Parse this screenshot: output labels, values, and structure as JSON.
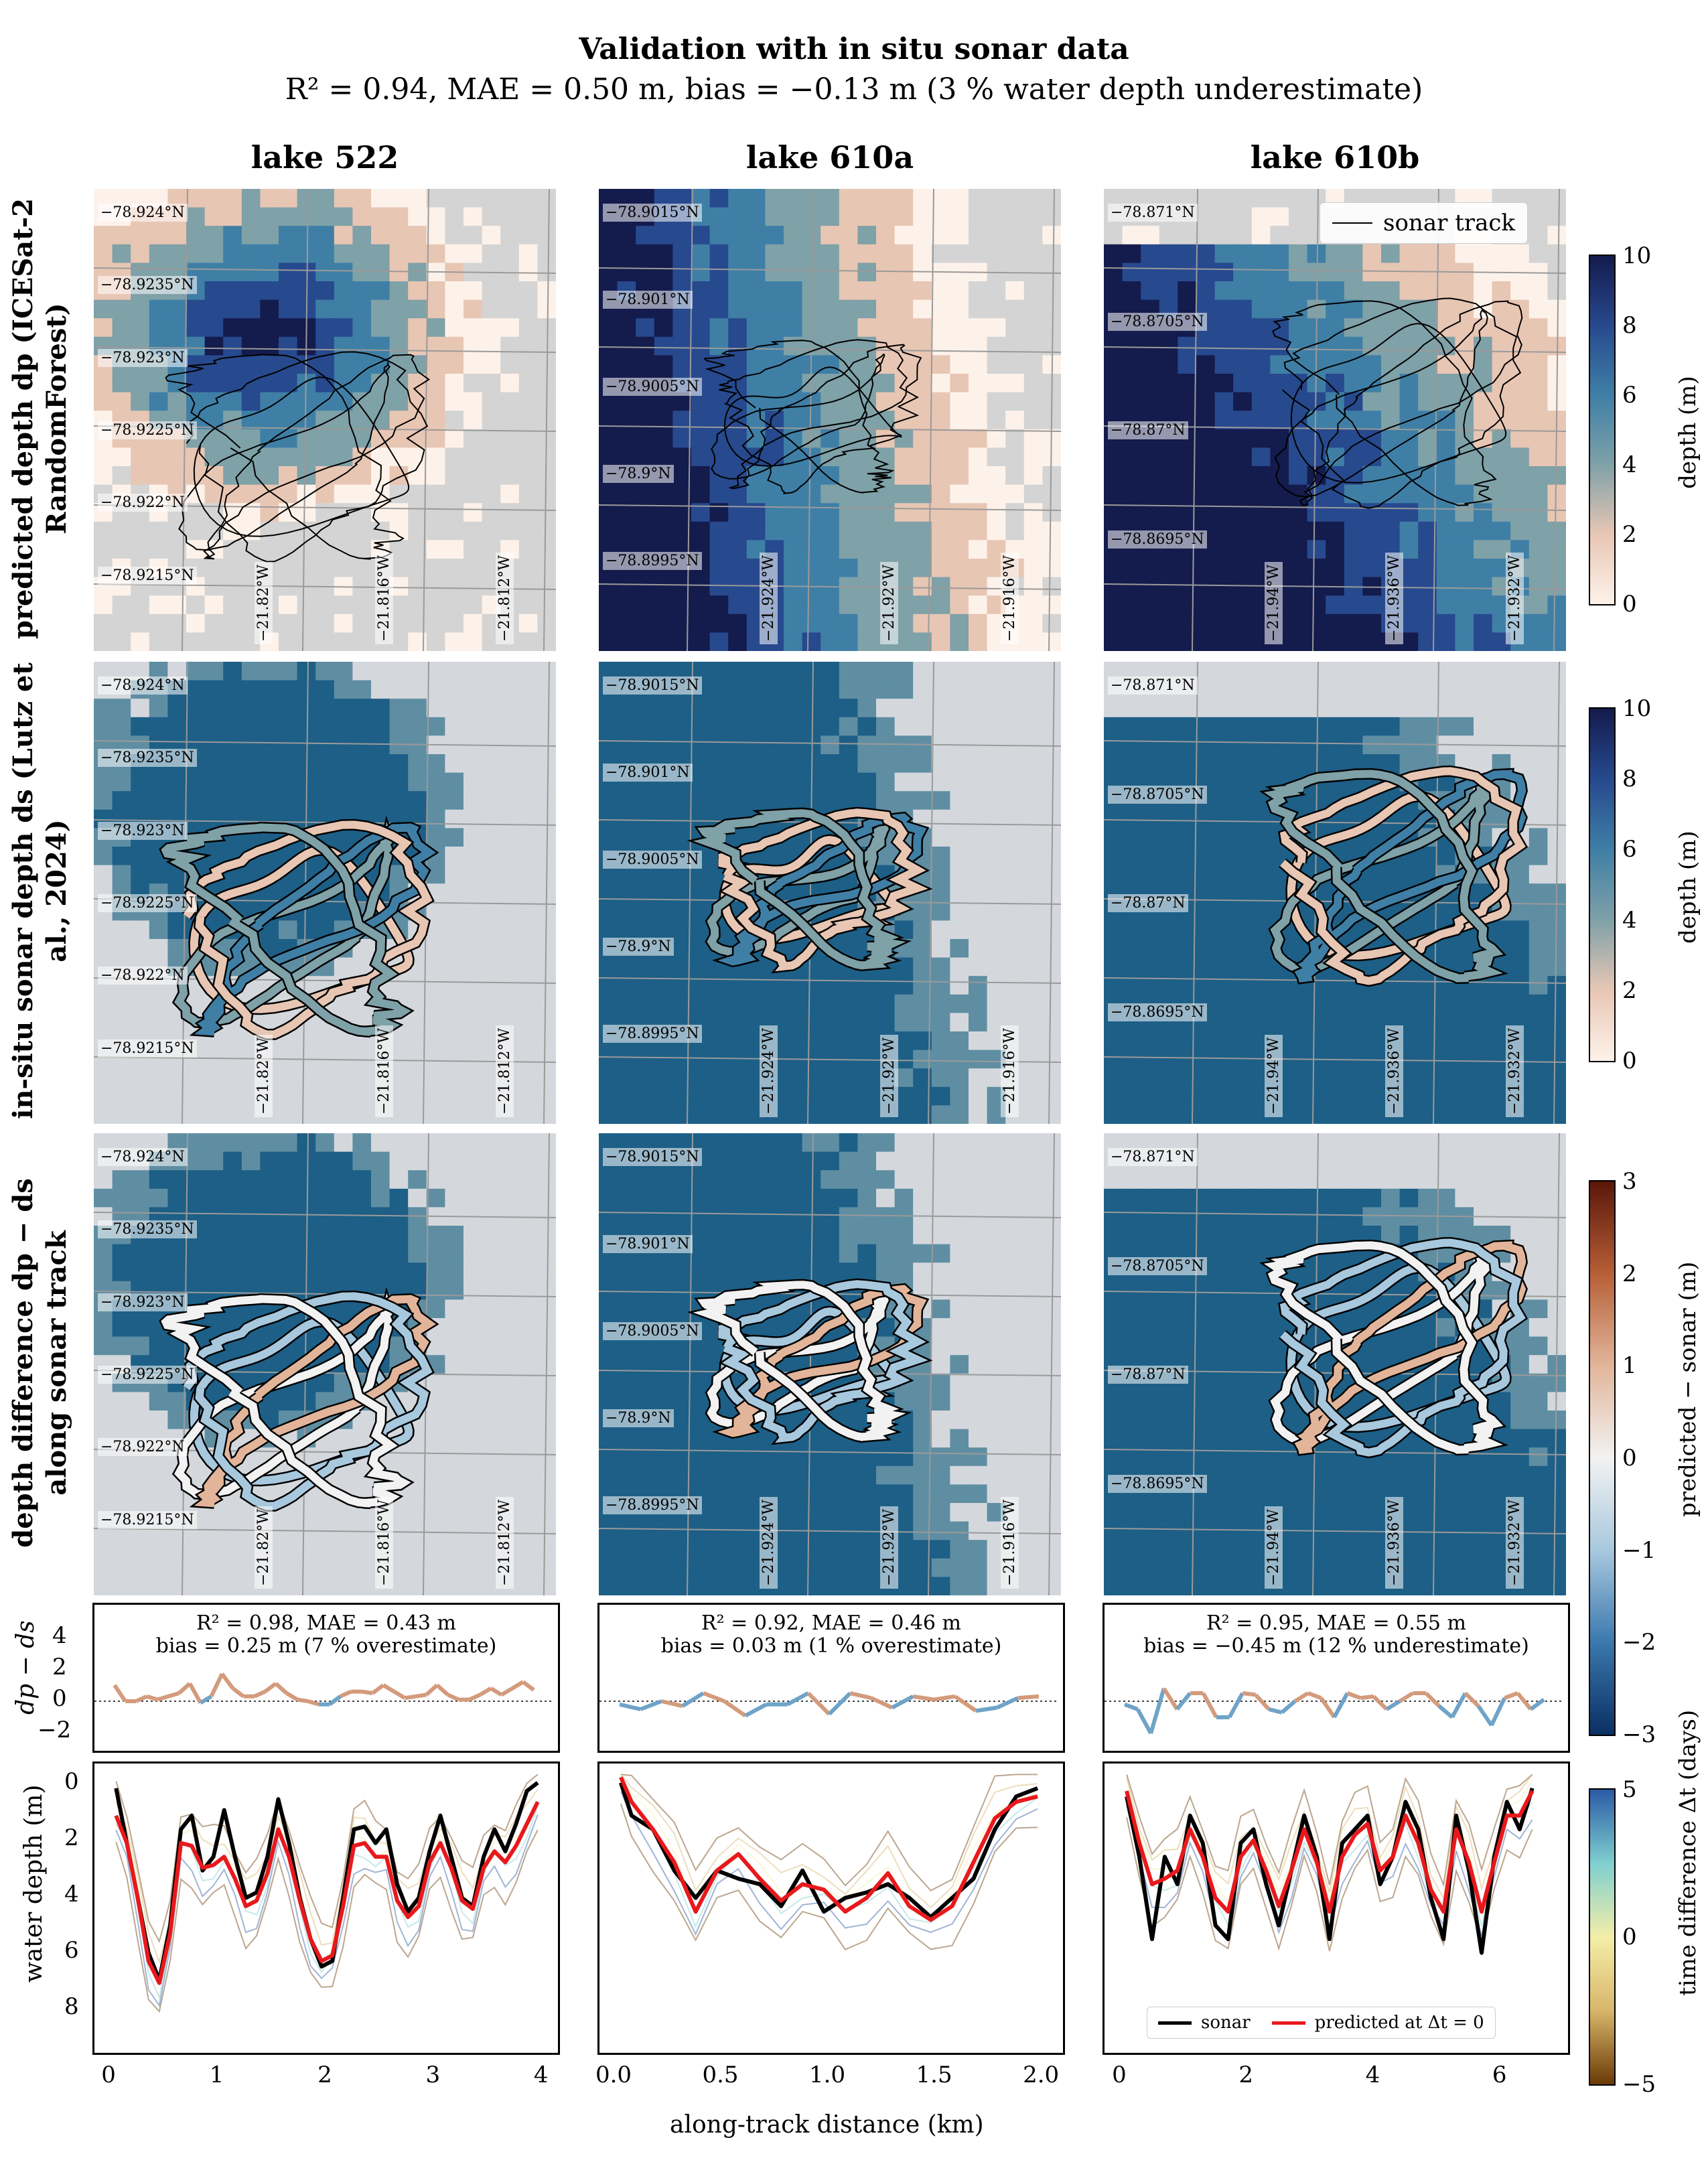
{
  "title": "Validation with in situ sonar data",
  "subtitle": "R² = 0.94, MAE = 0.50 m, bias = −0.13 m (3 % water depth underestimate)",
  "columns": [
    "lake 522",
    "lake 610a",
    "lake 610b"
  ],
  "rows": [
    "predicted depth dp (ICESat-2 RandomForest)",
    "in-situ sonar depth ds (Lutz et al., 2024)",
    "depth difference dp − ds along sonar track"
  ],
  "legend_sonar_track": "sonar track",
  "lat_labels": [
    [
      "−78.924°N",
      "−78.9235°N",
      "−78.923°N",
      "−78.9225°N",
      "−78.922°N",
      "−78.9215°N"
    ],
    [
      "−78.9015°N",
      "−78.901°N",
      "−78.9005°N",
      "−78.9°N",
      "−78.8995°N"
    ],
    [
      "−78.871°N",
      "−78.8705°N",
      "−78.87°N",
      "−78.8695°N"
    ]
  ],
  "lon_labels": [
    [
      "−21.82°W",
      "−21.816°W",
      "−21.812°W"
    ],
    [
      "−21.924°W",
      "−21.92°W",
      "−21.916°W"
    ],
    [
      "−21.94°W",
      "−21.936°W",
      "−21.932°W"
    ]
  ],
  "colorbars": {
    "depth": {
      "label": "depth (m)",
      "ticks": [
        "0",
        "2",
        "4",
        "6",
        "8",
        "10"
      ],
      "colors": [
        "#fdf2ea",
        "#e8c6b4",
        "#7fa1a8",
        "#3f7fa6",
        "#27498e",
        "#141b4d"
      ]
    },
    "difference": {
      "label": "predicted − sonar (m)",
      "ticks": [
        "−3",
        "−2",
        "−1",
        "0",
        "1",
        "2",
        "3"
      ],
      "colors": [
        "#0a2f63",
        "#3b78ad",
        "#a8c8de",
        "#f2f2f2",
        "#e2b59a",
        "#b65f37",
        "#5b1609"
      ]
    },
    "time": {
      "label": "time difference Δt (days)",
      "ticks": [
        "−5",
        "0",
        "5"
      ],
      "colors": [
        "#6b3a06",
        "#d8b66a",
        "#f4eea8",
        "#7fcfcf",
        "#2b5aa6"
      ]
    }
  },
  "stats": [
    {
      "line1": "R² = 0.98, MAE = 0.43 m",
      "line2": "bias = 0.25 m (7 % overestimate)"
    },
    {
      "line1": "R² = 0.92, MAE = 0.46 m",
      "line2": "bias = 0.03 m (1 % overestimate)"
    },
    {
      "line1": "R² = 0.95, MAE = 0.55 m",
      "line2": "bias = −0.45 m (12 % underestimate)"
    }
  ],
  "diff_ylabel": "dp − ds",
  "diff_yticks": [
    "4",
    "2",
    "0",
    "−2"
  ],
  "depth_ylabel": "water depth (m)",
  "depth_yticks": [
    "0",
    "2",
    "4",
    "6",
    "8"
  ],
  "xlabel": "along-track distance (km)",
  "bottom_legend": {
    "sonar": "sonar",
    "predicted": "predicted at Δt = 0"
  },
  "colors": {
    "sonar": "#000000",
    "predicted": "#e8191c",
    "water": "#1d5f86",
    "ice": "#d4d8dc",
    "nodata": "#d4d4d4"
  },
  "chart_data": [
    {
      "type": "line",
      "title": "lake 522",
      "xlabel": "along-track distance (km)",
      "ylabel": "water depth (m)",
      "xlim": [
        -0.2,
        4.05
      ],
      "ylim": [
        10,
        -0.4
      ],
      "xticks": [
        0,
        1,
        2,
        3,
        4
      ],
      "series": [
        {
          "name": "sonar",
          "x": [
            0,
            0.1,
            0.2,
            0.3,
            0.4,
            0.5,
            0.6,
            0.7,
            0.8,
            0.9,
            1.0,
            1.1,
            1.2,
            1.3,
            1.4,
            1.5,
            1.6,
            1.7,
            1.8,
            1.9,
            2.0,
            2.1,
            2.2,
            2.3,
            2.4,
            2.5,
            2.6,
            2.7,
            2.8,
            2.9,
            3.0,
            3.1,
            3.2,
            3.3,
            3.4,
            3.5,
            3.6,
            3.7,
            3.8,
            3.9
          ],
          "y": [
            0.5,
            2.5,
            4.5,
            6.5,
            7.5,
            5.5,
            2.0,
            1.5,
            3.5,
            3.0,
            1.3,
            3.0,
            4.5,
            4.3,
            3.0,
            0.9,
            2.5,
            4.5,
            6.0,
            7.0,
            6.8,
            4.5,
            2.0,
            1.9,
            2.5,
            2.0,
            4.0,
            5.0,
            4.5,
            2.8,
            1.5,
            3.0,
            4.5,
            4.8,
            3.0,
            2.0,
            2.8,
            1.8,
            0.6,
            0.3
          ]
        },
        {
          "name": "predicted at Δt = 0",
          "x": [
            0,
            0.1,
            0.2,
            0.3,
            0.4,
            0.5,
            0.6,
            0.7,
            0.8,
            0.9,
            1.0,
            1.1,
            1.2,
            1.3,
            1.4,
            1.5,
            1.6,
            1.7,
            1.8,
            1.9,
            2.0,
            2.1,
            2.2,
            2.3,
            2.4,
            2.5,
            2.6,
            2.7,
            2.8,
            2.9,
            3.0,
            3.1,
            3.2,
            3.3,
            3.4,
            3.5,
            3.6,
            3.7,
            3.8,
            3.9
          ],
          "y": [
            1.5,
            2.5,
            4.5,
            6.8,
            7.6,
            5.8,
            2.5,
            2.6,
            3.4,
            3.3,
            3.0,
            3.8,
            4.8,
            4.6,
            3.6,
            2.0,
            3.0,
            4.6,
            6.0,
            6.8,
            6.6,
            4.8,
            2.6,
            2.5,
            3.0,
            3.0,
            4.6,
            5.2,
            4.8,
            3.2,
            2.5,
            3.4,
            4.6,
            4.9,
            3.4,
            2.8,
            3.2,
            2.6,
            1.8,
            1.0
          ]
        }
      ]
    },
    {
      "type": "line",
      "title": "lake 610a",
      "xlabel": "along-track distance (km)",
      "ylabel": "",
      "xlim": [
        -0.05,
        2.1
      ],
      "ylim": [
        10,
        -0.4
      ],
      "xticks": [
        0.0,
        0.5,
        1.0,
        1.5,
        2.0
      ],
      "series": [
        {
          "name": "sonar",
          "x": [
            0.05,
            0.1,
            0.2,
            0.3,
            0.4,
            0.5,
            0.6,
            0.7,
            0.8,
            0.9,
            1.0,
            1.1,
            1.2,
            1.3,
            1.4,
            1.5,
            1.6,
            1.7,
            1.8,
            1.9,
            2.0
          ],
          "y": [
            0.3,
            1.5,
            2.0,
            3.5,
            4.5,
            3.5,
            3.8,
            4.0,
            4.8,
            3.5,
            5.0,
            4.5,
            4.3,
            4.0,
            4.5,
            5.2,
            4.5,
            3.8,
            2.0,
            0.8,
            0.5
          ]
        },
        {
          "name": "predicted at Δt = 0",
          "x": [
            0.05,
            0.1,
            0.2,
            0.3,
            0.4,
            0.5,
            0.6,
            0.7,
            0.8,
            0.9,
            1.0,
            1.1,
            1.2,
            1.3,
            1.4,
            1.5,
            1.6,
            1.7,
            1.8,
            1.9,
            2.0
          ],
          "y": [
            0.1,
            1.0,
            2.0,
            3.2,
            5.0,
            3.5,
            2.9,
            3.8,
            4.6,
            4.0,
            4.2,
            5.0,
            4.5,
            3.6,
            4.8,
            5.3,
            4.8,
            3.2,
            1.6,
            1.0,
            0.8
          ]
        }
      ]
    },
    {
      "type": "line",
      "title": "lake 610b",
      "xlabel": "along-track distance (km)",
      "ylabel": "",
      "xlim": [
        -0.35,
        6.9
      ],
      "ylim": [
        10,
        -0.4
      ],
      "xticks": [
        0,
        2,
        4,
        6
      ],
      "series": [
        {
          "name": "sonar",
          "x": [
            0,
            0.2,
            0.4,
            0.6,
            0.8,
            1.0,
            1.2,
            1.4,
            1.6,
            1.8,
            2.0,
            2.2,
            2.4,
            2.6,
            2.8,
            3.0,
            3.2,
            3.4,
            3.6,
            3.8,
            4.0,
            4.2,
            4.4,
            4.6,
            4.8,
            5.0,
            5.2,
            5.4,
            5.6,
            5.8,
            6.0,
            6.2,
            6.4
          ],
          "y": [
            0.8,
            3.0,
            6.0,
            3.0,
            4.0,
            1.5,
            2.5,
            5.5,
            6.0,
            2.5,
            2.0,
            4.0,
            5.5,
            3.5,
            1.5,
            3.0,
            6.0,
            2.5,
            2.0,
            1.5,
            4.0,
            3.0,
            1.0,
            2.0,
            4.5,
            6.0,
            1.5,
            3.5,
            6.5,
            3.0,
            1.0,
            2.0,
            0.5
          ]
        },
        {
          "name": "predicted at Δt = 0",
          "x": [
            0,
            0.2,
            0.4,
            0.6,
            0.8,
            1.0,
            1.2,
            1.4,
            1.6,
            1.8,
            2.0,
            2.2,
            2.4,
            2.6,
            2.8,
            3.0,
            3.2,
            3.4,
            3.6,
            3.8,
            4.0,
            4.2,
            4.4,
            4.6,
            4.8,
            5.0,
            5.2,
            5.4,
            5.6,
            5.8,
            6.0,
            6.2,
            6.4
          ],
          "y": [
            0.6,
            2.5,
            4.0,
            3.8,
            3.5,
            2.0,
            3.0,
            4.5,
            5.0,
            3.0,
            2.4,
            3.5,
            4.8,
            3.5,
            2.0,
            3.2,
            5.0,
            3.0,
            2.2,
            1.8,
            3.5,
            3.0,
            1.5,
            2.5,
            4.2,
            5.0,
            2.0,
            3.2,
            5.0,
            3.2,
            1.5,
            1.5,
            0.6
          ]
        }
      ]
    }
  ]
}
